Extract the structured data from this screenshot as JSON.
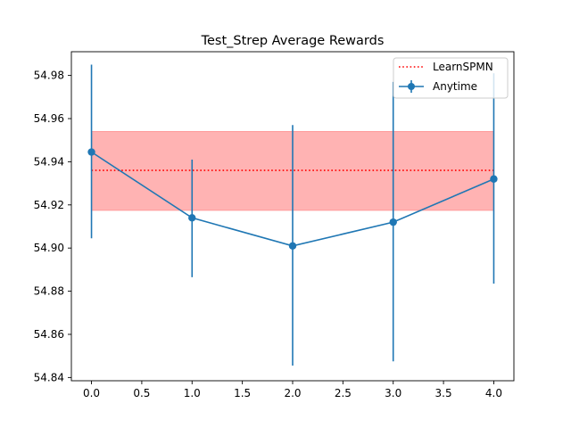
{
  "chart_data": {
    "type": "line",
    "title": "Test_Strep Average Rewards",
    "xlabel": "",
    "ylabel": "",
    "xlim": [
      -0.2,
      4.2
    ],
    "ylim": [
      54.8385,
      54.991
    ],
    "xticks": [
      0.0,
      0.5,
      1.0,
      1.5,
      2.0,
      2.5,
      3.0,
      3.5,
      4.0
    ],
    "xtick_labels": [
      "0.0",
      "0.5",
      "1.0",
      "1.5",
      "2.0",
      "2.5",
      "3.0",
      "3.5",
      "4.0"
    ],
    "yticks": [
      54.84,
      54.86,
      54.88,
      54.9,
      54.92,
      54.94,
      54.96,
      54.98
    ],
    "ytick_labels": [
      "54.84",
      "54.86",
      "54.88",
      "54.90",
      "54.92",
      "54.94",
      "54.96",
      "54.98"
    ],
    "grid": false,
    "legend_position": "top-right",
    "series": [
      {
        "name": "Anytime",
        "kind": "errorbar",
        "color": "#1f77b4",
        "x": [
          0,
          1,
          2,
          3,
          4
        ],
        "y": [
          54.9445,
          54.914,
          54.901,
          54.912,
          54.932
        ],
        "yerr_low": [
          54.9045,
          54.8865,
          54.8455,
          54.8475,
          54.8835
        ],
        "yerr_high": [
          54.985,
          54.941,
          54.957,
          54.977,
          54.981
        ]
      }
    ],
    "reference": {
      "name": "LearnSPMN",
      "color": "#ff0000",
      "line_style": "dotted",
      "x_range": [
        0,
        4
      ],
      "mean": 54.936,
      "band_low": 54.9175,
      "band_high": 54.954,
      "band_color": "#ff9999"
    }
  }
}
